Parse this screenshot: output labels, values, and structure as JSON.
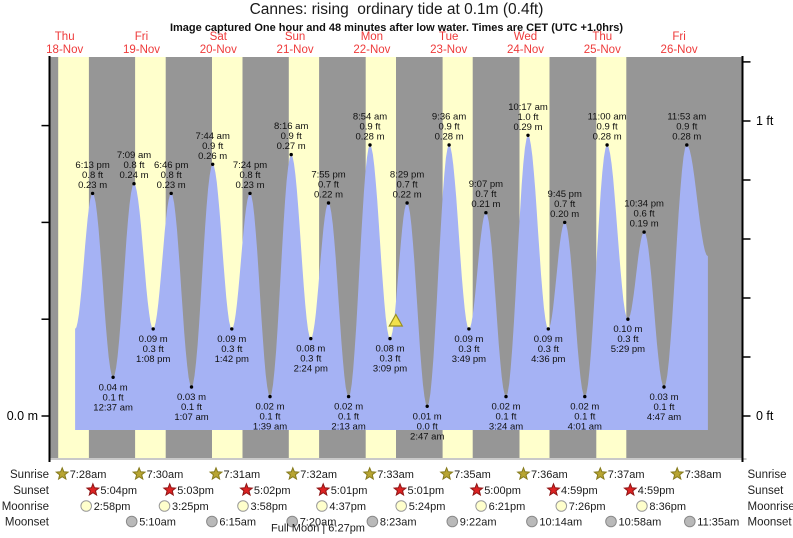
{
  "header": {
    "title": "Cannes: rising  ordinary tide at 0.1m (0.4ft)",
    "subtitle": "Image captured One hour and 48 minutes after low water. Times are CET (UTC +1.0hrs)"
  },
  "chart_data": {
    "type": "area",
    "title": "Cannes: rising  ordinary tide at 0.1m (0.4ft)",
    "ylabel_left_unit": "m",
    "ylabel_right_unit": "ft",
    "axis_left": {
      "zero_label": "0.0 m",
      "ticks_m": [
        0,
        0.1,
        0.2,
        0.3
      ]
    },
    "axis_right": {
      "one_ft_label": "1 ft",
      "zero_ft_label": "0 ft",
      "ticks_ft": [
        0,
        0.2,
        0.4,
        0.6,
        0.8,
        1.0,
        1.2
      ]
    },
    "days": [
      {
        "dow": "Thu",
        "date": "18-Nov"
      },
      {
        "dow": "Fri",
        "date": "19-Nov"
      },
      {
        "dow": "Sat",
        "date": "20-Nov"
      },
      {
        "dow": "Sun",
        "date": "21-Nov"
      },
      {
        "dow": "Mon",
        "date": "22-Nov"
      },
      {
        "dow": "Tue",
        "date": "23-Nov"
      },
      {
        "dow": "Wed",
        "date": "24-Nov"
      },
      {
        "dow": "Thu",
        "date": "25-Nov"
      },
      {
        "dow": "Fri",
        "date": "26-Nov"
      }
    ],
    "tides": [
      {
        "day": 0,
        "time": "6:13 pm",
        "type": "high",
        "ft_label": "0.8 ft",
        "m_label": "0.23 m",
        "height_m": 0.23
      },
      {
        "day": 1,
        "time": "12:37 am",
        "type": "low",
        "ft_label": "0.1 ft",
        "m_label": "0.04 m",
        "height_m": 0.04
      },
      {
        "day": 1,
        "time": "7:09 am",
        "type": "high",
        "ft_label": "0.8 ft",
        "m_label": "0.24 m",
        "height_m": 0.24
      },
      {
        "day": 1,
        "time": "1:08 pm",
        "type": "low",
        "ft_label": "0.3 ft",
        "m_label": "0.09 m",
        "height_m": 0.09
      },
      {
        "day": 1,
        "time": "6:46 pm",
        "type": "high",
        "ft_label": "0.8 ft",
        "m_label": "0.23 m",
        "height_m": 0.23
      },
      {
        "day": 2,
        "time": "1:07 am",
        "type": "low",
        "ft_label": "0.1 ft",
        "m_label": "0.03 m",
        "height_m": 0.03
      },
      {
        "day": 2,
        "time": "7:44 am",
        "type": "high",
        "ft_label": "0.9 ft",
        "m_label": "0.26 m",
        "height_m": 0.26
      },
      {
        "day": 2,
        "time": "1:42 pm",
        "type": "low",
        "ft_label": "0.3 ft",
        "m_label": "0.09 m",
        "height_m": 0.09
      },
      {
        "day": 2,
        "time": "7:24 pm",
        "type": "high",
        "ft_label": "0.8 ft",
        "m_label": "0.23 m",
        "height_m": 0.23
      },
      {
        "day": 3,
        "time": "1:39 am",
        "type": "low",
        "ft_label": "0.1 ft",
        "m_label": "0.02 m",
        "height_m": 0.02
      },
      {
        "day": 3,
        "time": "8:16 am",
        "type": "high",
        "ft_label": "0.9 ft",
        "m_label": "0.27 m",
        "height_m": 0.27
      },
      {
        "day": 3,
        "time": "2:24 pm",
        "type": "low",
        "ft_label": "0.3 ft",
        "m_label": "0.08 m",
        "height_m": 0.08
      },
      {
        "day": 3,
        "time": "7:55 pm",
        "type": "high",
        "ft_label": "0.7 ft",
        "m_label": "0.22 m",
        "height_m": 0.22
      },
      {
        "day": 4,
        "time": "2:13 am",
        "type": "low",
        "ft_label": "0.1 ft",
        "m_label": "0.02 m",
        "height_m": 0.02
      },
      {
        "day": 4,
        "time": "8:54 am",
        "type": "high",
        "ft_label": "0.9 ft",
        "m_label": "0.28 m",
        "height_m": 0.28
      },
      {
        "day": 4,
        "time": "3:09 pm",
        "type": "low",
        "ft_label": "0.3 ft",
        "m_label": "0.08 m",
        "height_m": 0.08
      },
      {
        "day": 4,
        "time": "8:29 pm",
        "type": "high",
        "ft_label": "0.7 ft",
        "m_label": "0.22 m",
        "height_m": 0.22
      },
      {
        "day": 5,
        "time": "2:47 am",
        "type": "low",
        "ft_label": "0.0 ft",
        "m_label": "0.01 m",
        "height_m": 0.01
      },
      {
        "day": 5,
        "time": "9:36 am",
        "type": "high",
        "ft_label": "0.9 ft",
        "m_label": "0.28 m",
        "height_m": 0.28
      },
      {
        "day": 5,
        "time": "3:49 pm",
        "type": "low",
        "ft_label": "0.3 ft",
        "m_label": "0.09 m",
        "height_m": 0.09
      },
      {
        "day": 5,
        "time": "9:07 pm",
        "type": "high",
        "ft_label": "0.7 ft",
        "m_label": "0.21 m",
        "height_m": 0.21
      },
      {
        "day": 6,
        "time": "3:24 am",
        "type": "low",
        "ft_label": "0.1 ft",
        "m_label": "0.02 m",
        "height_m": 0.02
      },
      {
        "day": 6,
        "time": "10:17 am",
        "type": "high",
        "ft_label": "1.0 ft",
        "m_label": "0.29 m",
        "height_m": 0.29
      },
      {
        "day": 6,
        "time": "4:36 pm",
        "type": "low",
        "ft_label": "0.3 ft",
        "m_label": "0.09 m",
        "height_m": 0.09
      },
      {
        "day": 6,
        "time": "9:45 pm",
        "type": "high",
        "ft_label": "0.7 ft",
        "m_label": "0.20 m",
        "height_m": 0.2
      },
      {
        "day": 7,
        "time": "4:01 am",
        "type": "low",
        "ft_label": "0.1 ft",
        "m_label": "0.02 m",
        "height_m": 0.02
      },
      {
        "day": 7,
        "time": "11:00 am",
        "type": "high",
        "ft_label": "0.9 ft",
        "m_label": "0.28 m",
        "height_m": 0.28
      },
      {
        "day": 7,
        "time": "5:29 pm",
        "type": "low",
        "ft_label": "0.3 ft",
        "m_label": "0.10 m",
        "height_m": 0.1
      },
      {
        "day": 7,
        "time": "10:34 pm",
        "type": "high",
        "ft_label": "0.6 ft",
        "m_label": "0.19 m",
        "height_m": 0.19
      },
      {
        "day": 8,
        "time": "4:47 am",
        "type": "low",
        "ft_label": "0.1 ft",
        "m_label": "0.03 m",
        "height_m": 0.03
      },
      {
        "day": 8,
        "time": "11:53 am",
        "type": "high",
        "ft_label": "0.9 ft",
        "m_label": "0.28 m",
        "height_m": 0.28
      }
    ],
    "current_time_marker": {
      "day": 4,
      "time": "4:57 pm"
    },
    "sun_moon": {
      "sunrise": {
        "label": "Sunrise",
        "times": [
          {
            "day": 0,
            "time": "7:28am"
          },
          {
            "day": 1,
            "time": "7:30am"
          },
          {
            "day": 2,
            "time": "7:31am"
          },
          {
            "day": 3,
            "time": "7:32am"
          },
          {
            "day": 4,
            "time": "7:33am"
          },
          {
            "day": 5,
            "time": "7:35am"
          },
          {
            "day": 6,
            "time": "7:36am"
          },
          {
            "day": 7,
            "time": "7:37am"
          },
          {
            "day": 8,
            "time": "7:38am"
          }
        ]
      },
      "sunset": {
        "label": "Sunset",
        "times": [
          {
            "day": 0,
            "time": "5:04pm"
          },
          {
            "day": 1,
            "time": "5:03pm"
          },
          {
            "day": 2,
            "time": "5:02pm"
          },
          {
            "day": 3,
            "time": "5:01pm"
          },
          {
            "day": 4,
            "time": "5:01pm"
          },
          {
            "day": 5,
            "time": "5:00pm"
          },
          {
            "day": 6,
            "time": "4:59pm"
          },
          {
            "day": 7,
            "time": "4:59pm"
          }
        ]
      },
      "moonrise": {
        "label": "Moonrise",
        "times": [
          {
            "day": 0,
            "time": "2:58pm"
          },
          {
            "day": 1,
            "time": "3:25pm"
          },
          {
            "day": 2,
            "time": "3:58pm"
          },
          {
            "day": 3,
            "time": "4:37pm"
          },
          {
            "day": 4,
            "time": "5:24pm"
          },
          {
            "day": 5,
            "time": "6:21pm"
          },
          {
            "day": 6,
            "time": "7:26pm"
          },
          {
            "day": 7,
            "time": "8:36pm"
          }
        ]
      },
      "moonset": {
        "label": "Moonset",
        "times": [
          {
            "day": 1,
            "time": "5:10am"
          },
          {
            "day": 2,
            "time": "6:15am"
          },
          {
            "day": 3,
            "time": "7:20am"
          },
          {
            "day": 4,
            "time": "8:23am"
          },
          {
            "day": 5,
            "time": "9:22am"
          },
          {
            "day": 6,
            "time": "10:14am"
          },
          {
            "day": 7,
            "time": "10:58am"
          },
          {
            "day": 8,
            "time": "11:35am"
          }
        ]
      },
      "moon_phase": "Full Moon | 6:27pm"
    },
    "colors": {
      "night_band": "#969696",
      "day_band": "#ffffcc",
      "water": "#a5b2f4",
      "day_label_red": "#ee3a3a",
      "sunrise_star": "#b8a532",
      "sunrise_star_edge": "#857a1c",
      "sunset_star": "#dd2222",
      "sunset_star_edge": "#8e1414",
      "moonrise_circle": "#ffffcc",
      "moonset_circle": "#b9b9b9",
      "marker_yellow": "#f2e14c",
      "marker_edge": "#9a8f1f"
    }
  }
}
